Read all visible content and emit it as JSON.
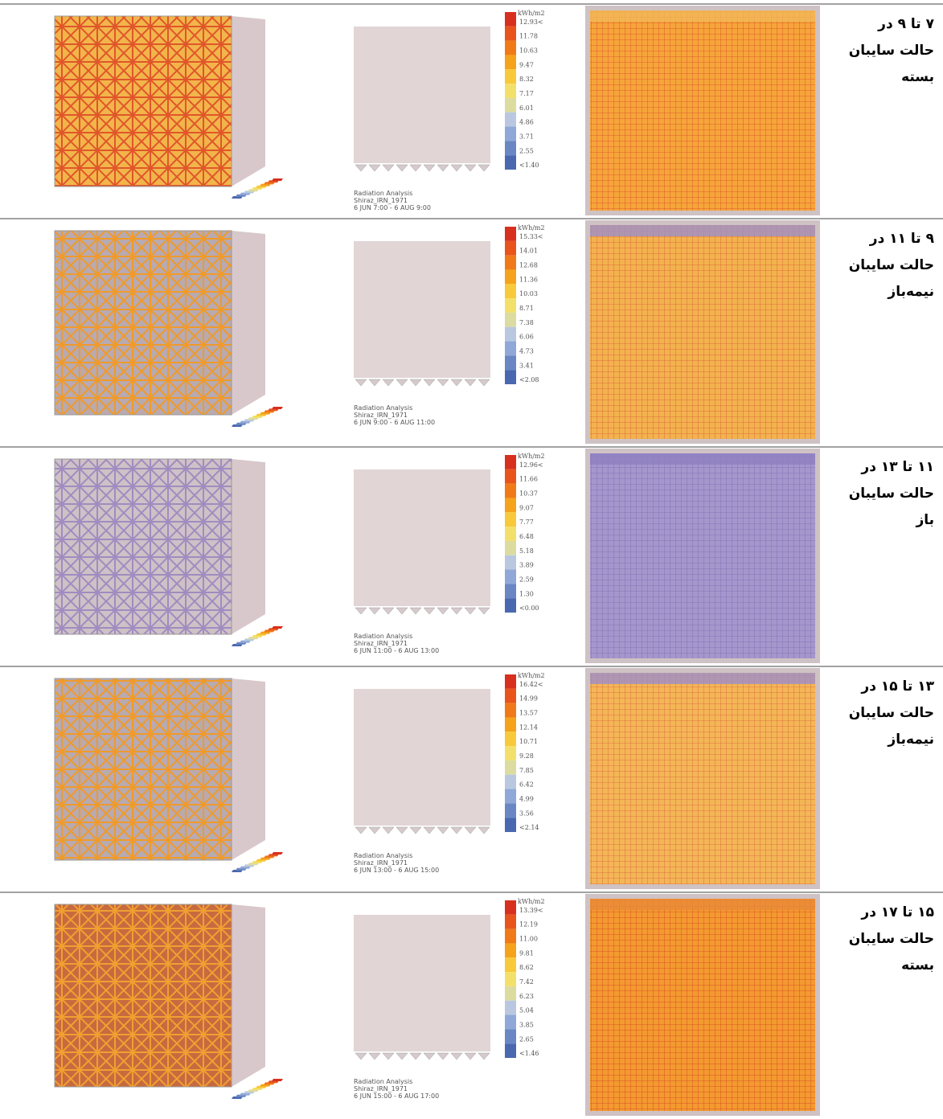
{
  "rows": [
    {
      "label": [
        "۷ تا ۹ در",
        "حالت سایبان",
        "بسته"
      ],
      "legend": {
        "unit": "kWh/m2",
        "values": [
          "12.93<",
          "11.78",
          "10.63",
          "9.47",
          "8.32",
          "7.17",
          "6.01",
          "4.86",
          "3.71",
          "2.55",
          "<1.40"
        ]
      },
      "caption": [
        "Radiation Analysis",
        "Shiraz_IRN_1971",
        "6 JUN 7:00 - 6 AUG 9:00"
      ]
    },
    {
      "label": [
        "۹ تا ۱۱ در",
        "حالت سایبان",
        "نیمه‌باز"
      ],
      "legend": {
        "unit": "kWh/m2",
        "values": [
          "15.33<",
          "14.01",
          "12.68",
          "11.36",
          "10.03",
          "8.71",
          "7.38",
          "6.06",
          "4.73",
          "3.41",
          "<2.08"
        ]
      },
      "caption": [
        "Radiation Analysis",
        "Shiraz_IRN_1971",
        "6 JUN 9:00 - 6 AUG 11:00"
      ]
    },
    {
      "label": [
        "۱۱ تا ۱۳ در",
        "حالت سایبان",
        "باز"
      ],
      "legend": {
        "unit": "kWh/m2",
        "values": [
          "12.96<",
          "11.66",
          "10.37",
          "9.07",
          "7.77",
          "6.48",
          "5.18",
          "3.89",
          "2.59",
          "1.30",
          "<0.00"
        ]
      },
      "caption": [
        "Radiation Analysis",
        "Shiraz_IRN_1971",
        "6 JUN 11:00 - 6 AUG 13:00"
      ]
    },
    {
      "label": [
        "۱۳ تا ۱۵ در",
        "حالت سایبان",
        "نیمه‌باز"
      ],
      "legend": {
        "unit": "kWh/m2",
        "values": [
          "16.42<",
          "14.99",
          "13.57",
          "12.14",
          "10.71",
          "9.28",
          "7.85",
          "6.42",
          "4.99",
          "3.56",
          "<2.14"
        ]
      },
      "caption": [
        "Radiation Analysis",
        "Shiraz_IRN_1971",
        "6 JUN 13:00 - 6 AUG 15:00"
      ]
    },
    {
      "label": [
        "۱۵ تا ۱۷ در",
        "حالت سایبان",
        "بسته"
      ],
      "legend": {
        "unit": "kWh/m2",
        "values": [
          "13.39<",
          "12.19",
          "11.00",
          "9.81",
          "8.62",
          "7.42",
          "6.23",
          "5.04",
          "3.85",
          "2.65",
          "<1.46"
        ]
      },
      "caption": [
        "Radiation Analysis",
        "Shiraz_IRN_1971",
        "6 JUN 15:00 - 6 AUG 17:00"
      ]
    }
  ]
}
